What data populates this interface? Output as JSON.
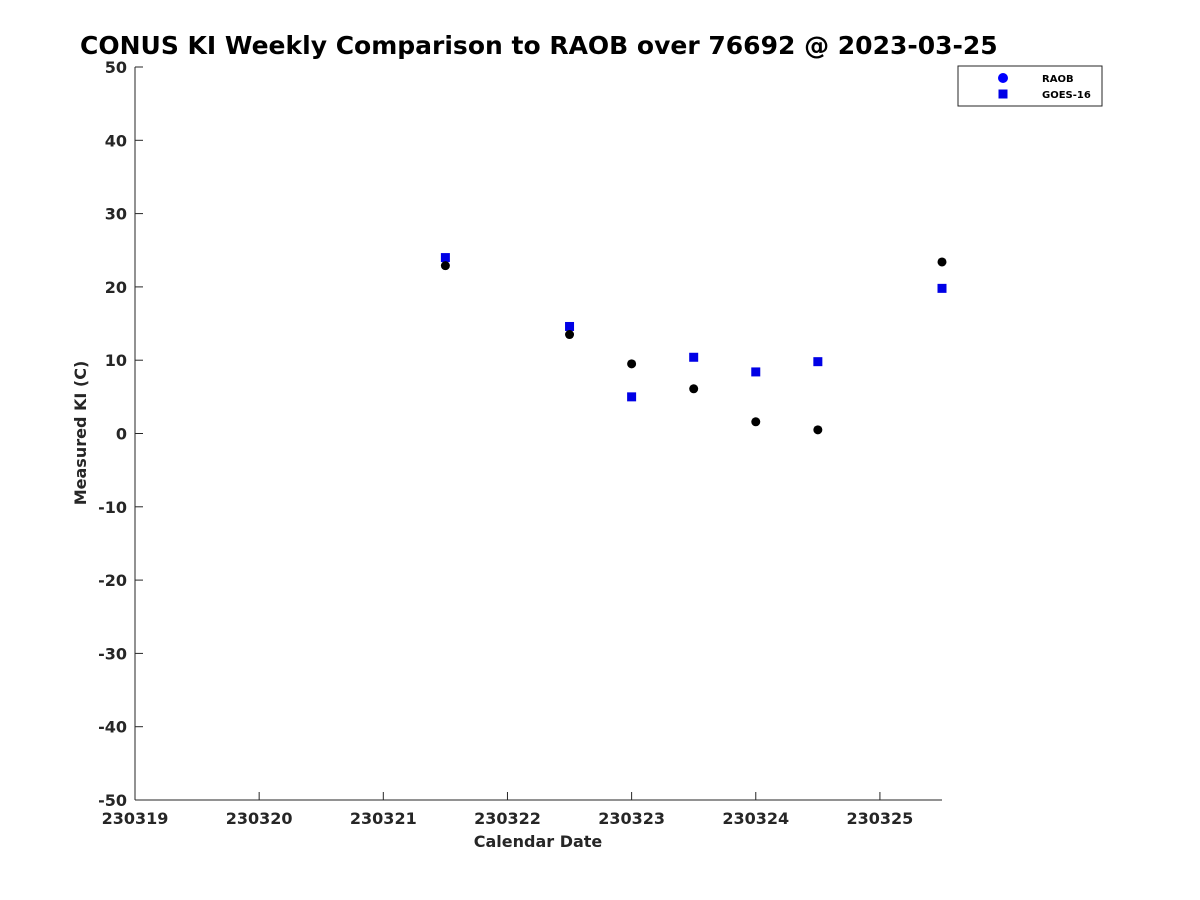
{
  "chart_data": {
    "type": "scatter",
    "title": "CONUS KI Weekly Comparison to RAOB over 76692 @ 2023-03-25",
    "xlabel": "Calendar Date",
    "ylabel": "Measured KI (C)",
    "xlim": [
      230319,
      230325.5
    ],
    "ylim": [
      -50,
      50
    ],
    "x_ticks": [
      230319,
      230320,
      230321,
      230322,
      230323,
      230324,
      230325
    ],
    "x_tick_labels": [
      "230319",
      "230320",
      "230321",
      "230322",
      "230323",
      "230324",
      "230325"
    ],
    "y_ticks": [
      50,
      40,
      30,
      20,
      10,
      0,
      -10,
      -20,
      -30,
      -40,
      -50
    ],
    "y_tick_labels": [
      "50",
      "40",
      "30",
      "20",
      "10",
      "0",
      "-10",
      "-20",
      "-30",
      "-40",
      "-50"
    ],
    "grid": false,
    "legend_position": "top-right",
    "series": [
      {
        "name": "RAOB",
        "marker": "circle",
        "legend_color": "#0000ff",
        "color": "#000000",
        "x": [
          230321.5,
          230322.5,
          230323.0,
          230323.5,
          230324.0,
          230324.5,
          230325.5
        ],
        "y": [
          22.9,
          13.5,
          9.5,
          6.1,
          1.6,
          0.5,
          23.4
        ]
      },
      {
        "name": "GOES-16",
        "marker": "square",
        "color": "#0000e6",
        "x": [
          230321.5,
          230322.5,
          230323.0,
          230323.5,
          230324.0,
          230324.5,
          230325.5
        ],
        "y": [
          24.0,
          14.6,
          5.0,
          10.4,
          8.4,
          9.8,
          19.8
        ]
      }
    ]
  }
}
